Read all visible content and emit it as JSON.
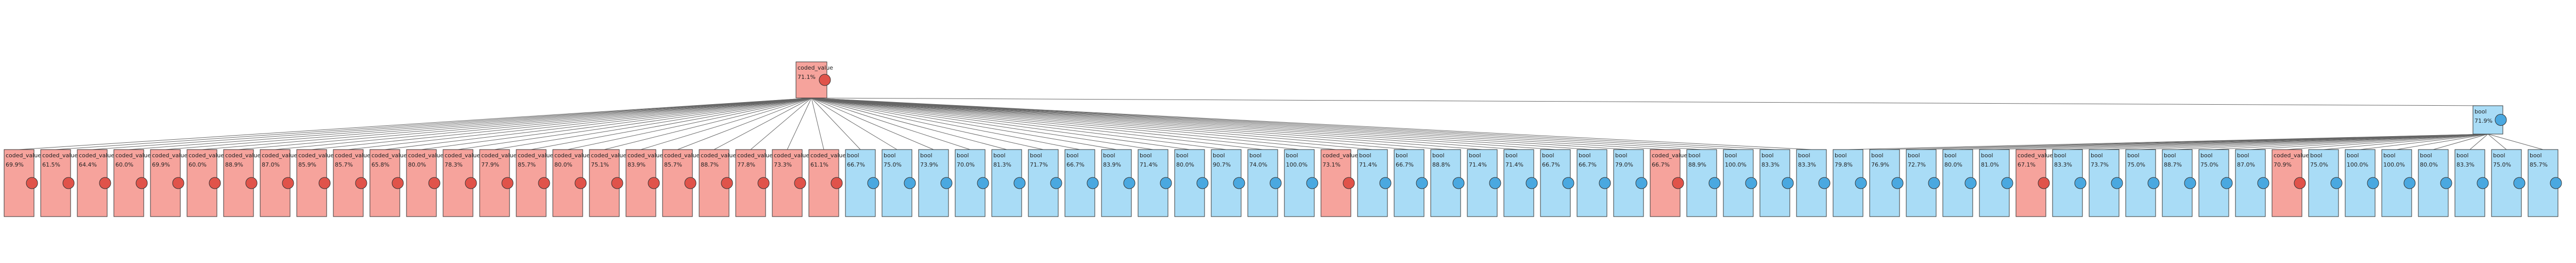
{
  "tree": {
    "class_colors": {
      "coded_value": "#f6a39c",
      "bool": "#a9dcf6"
    },
    "root": [
      "coded_value",
      "71.1%"
    ],
    "right": [
      "bool",
      "71.9%"
    ],
    "leaves": [
      [
        "coded_value",
        "69.9%"
      ],
      [
        "coded_value",
        "61.5%"
      ],
      [
        "coded_value",
        "64.4%"
      ],
      [
        "coded_value",
        "60.0%"
      ],
      [
        "coded_value",
        "69.9%"
      ],
      [
        "coded_value",
        "60.0%"
      ],
      [
        "coded_value",
        "88.9%"
      ],
      [
        "coded_value",
        "87.0%"
      ],
      [
        "coded_value",
        "85.9%"
      ],
      [
        "coded_value",
        "85.7%"
      ],
      [
        "coded_value",
        "65.8%"
      ],
      [
        "coded_value",
        "80.0%"
      ],
      [
        "coded_value",
        "78.3%"
      ],
      [
        "coded_value",
        "77.9%"
      ],
      [
        "coded_value",
        "85.7%"
      ],
      [
        "coded_value",
        "80.0%"
      ],
      [
        "coded_value",
        "75.1%"
      ],
      [
        "coded_value",
        "83.9%"
      ],
      [
        "coded_value",
        "85.7%"
      ],
      [
        "coded_value",
        "88.7%"
      ],
      [
        "coded_value",
        "77.8%"
      ],
      [
        "coded_value",
        "73.3%"
      ],
      [
        "coded_value",
        "61.1%"
      ],
      [
        "bool",
        "66.7%"
      ],
      [
        "bool",
        "75.0%"
      ],
      [
        "bool",
        "73.9%"
      ],
      [
        "bool",
        "70.0%"
      ],
      [
        "bool",
        "81.3%"
      ],
      [
        "bool",
        "71.7%"
      ],
      [
        "bool",
        "66.7%"
      ],
      [
        "bool",
        "83.9%"
      ],
      [
        "bool",
        "71.4%"
      ],
      [
        "bool",
        "80.0%"
      ],
      [
        "bool",
        "90.7%"
      ],
      [
        "bool",
        "74.0%"
      ],
      [
        "bool",
        "100.0%"
      ],
      [
        "coded_value",
        "73.1%"
      ],
      [
        "bool",
        "71.4%"
      ],
      [
        "bool",
        "66.7%"
      ],
      [
        "bool",
        "88.8%"
      ],
      [
        "bool",
        "71.4%"
      ],
      [
        "bool",
        "71.4%"
      ],
      [
        "bool",
        "66.7%"
      ],
      [
        "bool",
        "66.7%"
      ],
      [
        "bool",
        "79.0%"
      ],
      [
        "coded_value",
        "66.7%"
      ],
      [
        "bool",
        "88.9%"
      ],
      [
        "bool",
        "100.0%"
      ],
      [
        "bool",
        "83.3%"
      ],
      [
        "bool",
        "83.3%"
      ],
      [
        "bool",
        "79.8%"
      ],
      [
        "bool",
        "76.9%"
      ],
      [
        "bool",
        "72.7%"
      ],
      [
        "bool",
        "80.0%"
      ],
      [
        "bool",
        "81.0%"
      ],
      [
        "coded_value",
        "67.1%"
      ],
      [
        "bool",
        "83.3%"
      ],
      [
        "bool",
        "73.7%"
      ],
      [
        "bool",
        "75.0%"
      ],
      [
        "bool",
        "88.7%"
      ],
      [
        "bool",
        "75.0%"
      ],
      [
        "bool",
        "87.0%"
      ],
      [
        "coded_value",
        "70.9%"
      ],
      [
        "bool",
        "75.0%"
      ],
      [
        "bool",
        "100.0%"
      ],
      [
        "bool",
        "100.0%"
      ],
      [
        "bool",
        "80.0%"
      ],
      [
        "bool",
        "83.3%"
      ],
      [
        "bool",
        "75.0%"
      ],
      [
        "bool",
        "85.7%"
      ]
    ]
  }
}
